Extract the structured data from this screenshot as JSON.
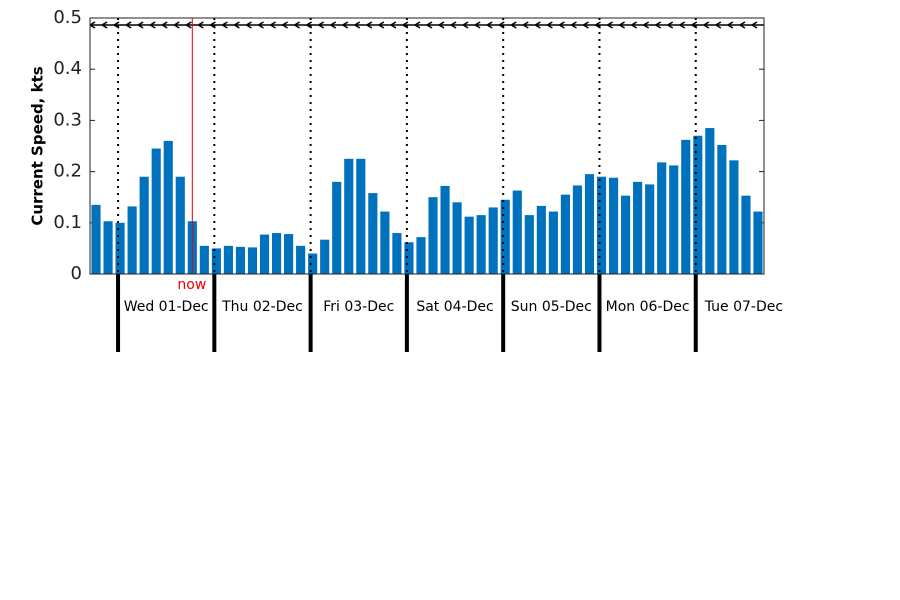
{
  "chart_data": {
    "type": "bar",
    "ylabel": "Current Speed, kts",
    "color": "#0072bd",
    "values": [
      0.135,
      0.103,
      0.1,
      0.132,
      0.19,
      0.245,
      0.26,
      0.19,
      0.103,
      0.055,
      0.05,
      0.055,
      0.053,
      0.052,
      0.077,
      0.08,
      0.078,
      0.055,
      0.04,
      0.067,
      0.18,
      0.225,
      0.225,
      0.158,
      0.122,
      0.08,
      0.062,
      0.072,
      0.15,
      0.172,
      0.14,
      0.112,
      0.115,
      0.13,
      0.145,
      0.163,
      0.115,
      0.133,
      0.122,
      0.155,
      0.173,
      0.195,
      0.19,
      0.188,
      0.153,
      0.18,
      0.175,
      0.218,
      0.212,
      0.262,
      0.27,
      0.285,
      0.252,
      0.222,
      0.153,
      0.122
    ],
    "day_labels": [
      "Wed 01-Dec",
      "Thu 02-Dec",
      "Fri 03-Dec",
      "Sat 04-Dec",
      "Sun 05-Dec",
      "Mon 06-Dec",
      "Tue 07-Dec"
    ],
    "annotation": "now",
    "ylim": [
      0,
      0.5
    ],
    "yticks": [
      0,
      0.1,
      0.2,
      0.3,
      0.4,
      0.5
    ]
  }
}
